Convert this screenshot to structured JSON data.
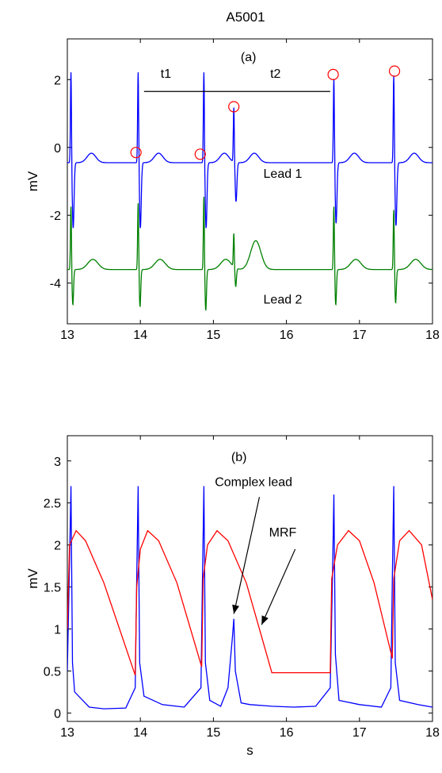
{
  "figure_title": "A5001",
  "chart_data": [
    {
      "type": "line",
      "panel_label": "(a)",
      "ylabel": "mV",
      "xlim": [
        13,
        18
      ],
      "ylim": [
        -5.2,
        3.2
      ],
      "x_ticks": [
        13,
        14,
        15,
        16,
        17,
        18
      ],
      "y_ticks": [
        -4,
        -2,
        0,
        2
      ],
      "grid": false,
      "series": [
        {
          "name": "Lead 1",
          "color": "#0000ff",
          "r_peaks": [
            {
              "x": 13.05,
              "y": 2.3
            },
            {
              "x": 13.97,
              "y": 2.3
            },
            {
              "x": 14.87,
              "y": 2.3
            },
            {
              "x": 15.28,
              "y": 1.2
            },
            {
              "x": 16.65,
              "y": 2.1
            },
            {
              "x": 17.47,
              "y": 2.2
            }
          ]
        },
        {
          "name": "Lead 2",
          "color": "#008000",
          "r_peaks": [
            {
              "x": 13.05,
              "y": -1.7
            },
            {
              "x": 13.97,
              "y": -1.6
            },
            {
              "x": 14.87,
              "y": -1.4
            },
            {
              "x": 15.28,
              "y": -2.6
            },
            {
              "x": 16.65,
              "y": -1.7
            },
            {
              "x": 17.47,
              "y": -1.8
            }
          ]
        }
      ],
      "markers": [
        {
          "x": 13.94,
          "y": -0.15
        },
        {
          "x": 14.82,
          "y": -0.2
        },
        {
          "x": 15.28,
          "y": 1.2
        },
        {
          "x": 16.64,
          "y": 2.15
        },
        {
          "x": 17.48,
          "y": 2.25
        }
      ],
      "interval_line": {
        "x_start": 14.05,
        "x_end": 16.6,
        "y": 1.65
      },
      "annotations": [
        {
          "text": "t1",
          "x": 14.35,
          "y": 2.05
        },
        {
          "text": "t2",
          "x": 15.85,
          "y": 2.05
        },
        {
          "text": "Lead 1",
          "x": 15.95,
          "y": -0.9
        },
        {
          "text": "Lead 2",
          "x": 15.95,
          "y": -4.6
        }
      ]
    },
    {
      "type": "line",
      "panel_label": "(b)",
      "xlabel": "s",
      "ylabel": "mV",
      "xlim": [
        13,
        18
      ],
      "ylim": [
        -0.1,
        3.3
      ],
      "x_ticks": [
        13,
        14,
        15,
        16,
        17,
        18
      ],
      "y_ticks": [
        0,
        0.5,
        1,
        1.5,
        2,
        2.5,
        3
      ],
      "grid": false,
      "series": [
        {
          "color": "#0000ff",
          "points": [
            [
              13.0,
              0.5
            ],
            [
              13.03,
              1.8
            ],
            [
              13.05,
              2.7
            ],
            [
              13.07,
              0.6
            ],
            [
              13.1,
              0.25
            ],
            [
              13.3,
              0.07
            ],
            [
              13.5,
              0.05
            ],
            [
              13.8,
              0.06
            ],
            [
              13.93,
              0.3
            ],
            [
              13.95,
              1.6
            ],
            [
              13.97,
              2.7
            ],
            [
              13.99,
              0.6
            ],
            [
              14.05,
              0.2
            ],
            [
              14.3,
              0.1
            ],
            [
              14.6,
              0.07
            ],
            [
              14.83,
              0.3
            ],
            [
              14.85,
              1.6
            ],
            [
              14.87,
              2.7
            ],
            [
              14.89,
              0.6
            ],
            [
              14.95,
              0.15
            ],
            [
              15.1,
              0.08
            ],
            [
              15.2,
              0.3
            ],
            [
              15.26,
              0.9
            ],
            [
              15.28,
              1.12
            ],
            [
              15.3,
              0.5
            ],
            [
              15.38,
              0.12
            ],
            [
              15.5,
              0.1
            ],
            [
              15.8,
              0.08
            ],
            [
              16.1,
              0.07
            ],
            [
              16.4,
              0.08
            ],
            [
              16.6,
              0.3
            ],
            [
              16.63,
              1.6
            ],
            [
              16.65,
              2.6
            ],
            [
              16.67,
              0.7
            ],
            [
              16.72,
              0.15
            ],
            [
              17.0,
              0.1
            ],
            [
              17.3,
              0.07
            ],
            [
              17.43,
              0.3
            ],
            [
              17.45,
              1.6
            ],
            [
              17.47,
              2.7
            ],
            [
              17.49,
              0.6
            ],
            [
              17.55,
              0.15
            ],
            [
              17.8,
              0.1
            ],
            [
              18.0,
              0.07
            ]
          ]
        },
        {
          "color": "#ff0000",
          "points": [
            [
              13.0,
              1.0
            ],
            [
              13.03,
              2.0
            ],
            [
              13.12,
              2.17
            ],
            [
              13.25,
              2.05
            ],
            [
              13.5,
              1.55
            ],
            [
              13.93,
              0.45
            ],
            [
              13.95,
              1.5
            ],
            [
              14.0,
              1.95
            ],
            [
              14.1,
              2.17
            ],
            [
              14.25,
              2.05
            ],
            [
              14.5,
              1.55
            ],
            [
              14.84,
              0.55
            ],
            [
              14.86,
              1.6
            ],
            [
              14.92,
              2.0
            ],
            [
              15.05,
              2.17
            ],
            [
              15.2,
              2.05
            ],
            [
              15.45,
              1.55
            ],
            [
              15.8,
              0.48
            ],
            [
              16.6,
              0.48
            ],
            [
              16.62,
              1.6
            ],
            [
              16.7,
              2.0
            ],
            [
              16.85,
              2.17
            ],
            [
              17.0,
              2.05
            ],
            [
              17.2,
              1.55
            ],
            [
              17.45,
              0.65
            ],
            [
              17.47,
              1.6
            ],
            [
              17.55,
              2.05
            ],
            [
              17.68,
              2.17
            ],
            [
              17.85,
              2.0
            ],
            [
              18.0,
              1.35
            ]
          ]
        }
      ],
      "annotations": [
        {
          "text": "Complex lead",
          "x": 15.55,
          "y": 2.7
        },
        {
          "text": "MRF",
          "x": 15.95,
          "y": 2.1
        }
      ],
      "arrows": [
        {
          "from": [
            15.63,
            2.57
          ],
          "to": [
            15.28,
            1.18
          ]
        },
        {
          "from": [
            16.12,
            1.95
          ],
          "to": [
            15.66,
            1.05
          ]
        }
      ]
    }
  ]
}
